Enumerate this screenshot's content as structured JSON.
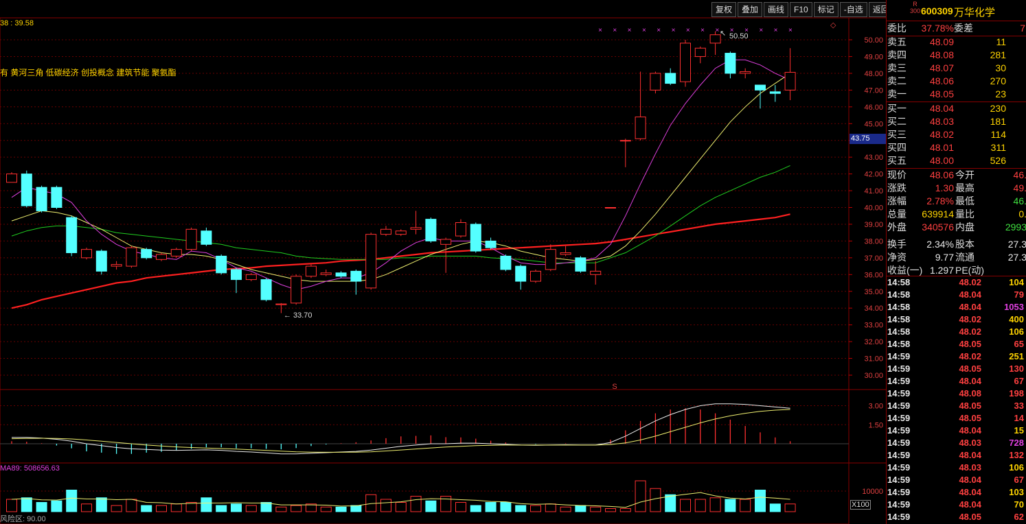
{
  "toolbar": {
    "buttons": [
      "复权",
      "叠加",
      "画线",
      "F10",
      "标记",
      "-自选",
      "返回"
    ]
  },
  "chart_header": {
    "ma_text": "38 : 39.58",
    "concepts": "有 黄河三角 低碳经济 创投概念 建筑节能 聚氨酯"
  },
  "price_axis": {
    "labels": [
      "50.00",
      "49.00",
      "48.00",
      "47.00",
      "46.00",
      "45.00",
      "44.00",
      "43.00",
      "42.00",
      "41.00",
      "40.00",
      "39.00",
      "38.00",
      "37.00",
      "36.00",
      "35.00",
      "34.00",
      "33.00",
      "32.00",
      "31.00",
      "30.00"
    ],
    "current": "43.75"
  },
  "annotations": {
    "high_label": "50.50",
    "low_label": "33.70",
    "marker": "S"
  },
  "macd_axis": {
    "labels": [
      "3.00",
      "1.50"
    ]
  },
  "volume": {
    "label": "MA89: 508656.63",
    "axis_label": "10000",
    "scale": "X100"
  },
  "risk": "风险区: 90.00",
  "stock": {
    "r_mark": "R\n300",
    "code": "600309",
    "name": "万华化学"
  },
  "orderbook": {
    "weibi": {
      "label": "委比",
      "value": "37.78%",
      "label2": "委差",
      "value2": "7"
    },
    "asks": [
      {
        "label": "卖五",
        "price": "48.09",
        "vol": "11"
      },
      {
        "label": "卖四",
        "price": "48.08",
        "vol": "281"
      },
      {
        "label": "卖三",
        "price": "48.07",
        "vol": "30"
      },
      {
        "label": "卖二",
        "price": "48.06",
        "vol": "270"
      },
      {
        "label": "卖一",
        "price": "48.05",
        "vol": "23"
      }
    ],
    "bids": [
      {
        "label": "买一",
        "price": "48.04",
        "vol": "230"
      },
      {
        "label": "买二",
        "price": "48.03",
        "vol": "181"
      },
      {
        "label": "买三",
        "price": "48.02",
        "vol": "114"
      },
      {
        "label": "买四",
        "price": "48.01",
        "vol": "311"
      },
      {
        "label": "买五",
        "price": "48.00",
        "vol": "526"
      }
    ]
  },
  "quote": [
    {
      "l1": "现价",
      "v1": "48.06",
      "l2": "今开",
      "v2": "46.",
      "c1": "red",
      "c2": "red"
    },
    {
      "l1": "涨跌",
      "v1": "1.30",
      "l2": "最高",
      "v2": "49.",
      "c1": "red",
      "c2": "red"
    },
    {
      "l1": "涨幅",
      "v1": "2.78%",
      "l2": "最低",
      "v2": "46.",
      "c1": "red",
      "c2": "grn"
    },
    {
      "l1": "总量",
      "v1": "639914",
      "l2": "量比",
      "v2": "0.",
      "c1": "yel",
      "c2": "yel"
    },
    {
      "l1": "外盘",
      "v1": "340576",
      "l2": "内盘",
      "v2": "2993",
      "c1": "red",
      "c2": "grn"
    },
    {
      "l1": "换手",
      "v1": "2.34%",
      "l2": "股本",
      "v2": "27.3",
      "c1": "wht",
      "c2": "wht"
    },
    {
      "l1": "净资",
      "v1": "9.77",
      "l2": "流通",
      "v2": "27.3",
      "c1": "wht",
      "c2": "wht"
    },
    {
      "l1": "收益(一)",
      "v1": "1.297",
      "l2": "PE(动)",
      "v2": "",
      "c1": "wht",
      "c2": "wht"
    }
  ],
  "ticks": [
    {
      "t": "14:58",
      "p": "48.02",
      "v": "104",
      "c": "yel"
    },
    {
      "t": "14:58",
      "p": "48.04",
      "v": "79",
      "c": "red"
    },
    {
      "t": "14:58",
      "p": "48.04",
      "v": "1053",
      "c": "mag"
    },
    {
      "t": "14:58",
      "p": "48.02",
      "v": "400",
      "c": "yel"
    },
    {
      "t": "14:58",
      "p": "48.02",
      "v": "106",
      "c": "yel"
    },
    {
      "t": "14:58",
      "p": "48.05",
      "v": "65",
      "c": "red"
    },
    {
      "t": "14:59",
      "p": "48.02",
      "v": "251",
      "c": "yel"
    },
    {
      "t": "14:59",
      "p": "48.05",
      "v": "130",
      "c": "red"
    },
    {
      "t": "14:59",
      "p": "48.04",
      "v": "67",
      "c": "red"
    },
    {
      "t": "14:59",
      "p": "48.08",
      "v": "198",
      "c": "red"
    },
    {
      "t": "14:59",
      "p": "48.05",
      "v": "33",
      "c": "red"
    },
    {
      "t": "14:59",
      "p": "48.05",
      "v": "14",
      "c": "red"
    },
    {
      "t": "14:59",
      "p": "48.04",
      "v": "15",
      "c": "yel"
    },
    {
      "t": "14:59",
      "p": "48.03",
      "v": "728",
      "c": "mag"
    },
    {
      "t": "14:59",
      "p": "48.04",
      "v": "132",
      "c": "red"
    },
    {
      "t": "14:59",
      "p": "48.03",
      "v": "106",
      "c": "yel"
    },
    {
      "t": "14:59",
      "p": "48.04",
      "v": "67",
      "c": "red"
    },
    {
      "t": "14:59",
      "p": "48.04",
      "v": "103",
      "c": "yel"
    },
    {
      "t": "14:59",
      "p": "48.04",
      "v": "70",
      "c": "yel"
    },
    {
      "t": "14:59",
      "p": "48.05",
      "v": "62",
      "c": "red"
    }
  ],
  "chart_data": {
    "type": "candlestick",
    "ylim": [
      29.5,
      51
    ],
    "candles": [
      [
        41.5,
        42.0,
        41.6,
        42.1
      ],
      [
        42.0,
        40.1,
        40.0,
        42.2
      ],
      [
        41.2,
        39.8,
        39.7,
        41.3
      ],
      [
        41.2,
        40.0,
        39.9,
        41.3
      ],
      [
        39.4,
        37.3,
        37.1,
        39.5
      ],
      [
        37.0,
        37.5,
        36.9,
        37.6
      ],
      [
        37.4,
        36.2,
        36.0,
        37.5
      ],
      [
        36.5,
        36.6,
        36.3,
        36.8
      ],
      [
        36.5,
        37.6,
        36.4,
        37.7
      ],
      [
        37.5,
        37.0,
        36.9,
        37.6
      ],
      [
        36.9,
        37.2,
        36.8,
        37.3
      ],
      [
        37.1,
        37.5,
        37.0,
        37.6
      ],
      [
        37.5,
        38.7,
        37.4,
        38.8
      ],
      [
        38.6,
        37.8,
        37.7,
        38.8
      ],
      [
        37.1,
        36.1,
        36.0,
        37.2
      ],
      [
        36.3,
        35.7,
        34.9,
        36.4
      ],
      [
        35.7,
        36.0,
        35.6,
        36.1
      ],
      [
        35.7,
        34.5,
        34.4,
        35.8
      ],
      [
        34.2,
        34.25,
        33.7,
        34.3
      ],
      [
        34.3,
        35.9,
        34.2,
        36.0
      ],
      [
        35.9,
        36.5,
        35.8,
        36.6
      ],
      [
        36.0,
        36.1,
        35.9,
        36.3
      ],
      [
        36.1,
        35.9,
        35.8,
        36.2
      ],
      [
        36.2,
        35.6,
        34.8,
        36.3
      ],
      [
        35.2,
        38.4,
        35.1,
        38.5
      ],
      [
        38.4,
        38.7,
        38.3,
        38.9
      ],
      [
        38.4,
        38.6,
        38.3,
        38.7
      ],
      [
        38.7,
        38.8,
        38.4,
        39.8
      ],
      [
        39.3,
        38.0,
        37.9,
        39.4
      ],
      [
        37.8,
        38.1,
        36.1,
        38.2
      ],
      [
        38.3,
        39.1,
        38.2,
        39.3
      ],
      [
        39.0,
        37.4,
        37.3,
        39.1
      ],
      [
        38.0,
        37.6,
        37.5,
        38.2
      ],
      [
        37.1,
        36.3,
        36.2,
        37.2
      ],
      [
        36.5,
        35.6,
        35.1,
        36.6
      ],
      [
        35.6,
        36.2,
        35.5,
        36.3
      ],
      [
        36.3,
        37.5,
        36.2,
        37.8
      ],
      [
        37.2,
        37.3,
        37.1,
        37.7
      ],
      [
        37.0,
        36.2,
        36.1,
        37.1
      ],
      [
        36.0,
        36.2,
        35.4,
        36.8
      ],
      [
        40.0,
        40.0,
        40.0,
        40.0
      ],
      [
        44.0,
        44.0,
        42.4,
        44.1
      ],
      [
        44.1,
        45.4,
        44.0,
        48.1
      ],
      [
        47.0,
        48.0,
        46.8,
        48.1
      ],
      [
        48.0,
        47.4,
        47.3,
        48.3
      ],
      [
        47.5,
        49.8,
        47.2,
        50.0
      ],
      [
        49.0,
        49.5,
        48.6,
        49.6
      ],
      [
        49.8,
        50.3,
        49.1,
        50.5
      ],
      [
        49.2,
        48.0,
        47.7,
        49.3
      ],
      [
        48.0,
        48.1,
        47.7,
        48.3
      ],
      [
        47.3,
        47.0,
        45.9,
        47.3
      ],
      [
        46.9,
        46.8,
        46.3,
        47.3
      ],
      [
        47.0,
        48.06,
        46.4,
        49.5
      ]
    ],
    "ma_fast": [
      40.6,
      41.2,
      41.0,
      40.8,
      40.3,
      39.2,
      38.4,
      37.8,
      37.4,
      37.2,
      37.0,
      36.9,
      37.4,
      37.3,
      36.9,
      36.4,
      36.2,
      35.8,
      35.4,
      35.1,
      35.3,
      35.6,
      35.8,
      35.8,
      36.1,
      36.7,
      37.4,
      37.9,
      38.2,
      38.0,
      38.0,
      38.0,
      37.6,
      37.1,
      36.7,
      36.6,
      36.6,
      36.7,
      36.8,
      37.0,
      37.8,
      39.5,
      41.4,
      43.2,
      44.9,
      46.2,
      47.3,
      48.3,
      48.8,
      48.8,
      48.5,
      48.0,
      47.6
    ],
    "ma_slow": [
      39.2,
      39.5,
      39.8,
      39.7,
      39.5,
      39.1,
      38.7,
      38.2,
      37.7,
      37.5,
      37.3,
      37.2,
      37.2,
      37.1,
      36.9,
      36.6,
      36.3,
      36.1,
      35.9,
      35.7,
      35.6,
      35.6,
      35.6,
      35.6,
      35.7,
      36.0,
      36.4,
      36.8,
      37.2,
      37.5,
      37.8,
      38.0,
      37.9,
      37.7,
      37.4,
      37.2,
      37.0,
      36.9,
      36.8,
      36.9,
      37.1,
      37.7,
      38.6,
      39.6,
      40.7,
      41.8,
      42.9,
      44.0,
      45.1,
      46.0,
      46.8,
      47.4,
      48.0
    ],
    "ma_mid": [
      38.3,
      38.6,
      38.8,
      38.9,
      38.9,
      38.8,
      38.7,
      38.5,
      38.4,
      38.3,
      38.2,
      38.1,
      38.0,
      37.9,
      37.8,
      37.6,
      37.5,
      37.4,
      37.3,
      37.1,
      37.0,
      36.95,
      36.9,
      36.9,
      36.9,
      36.9,
      37.0,
      37.0,
      37.1,
      37.1,
      37.1,
      37.1,
      37.0,
      36.95,
      36.9,
      36.8,
      36.7,
      36.7,
      36.7,
      36.7,
      37.0,
      37.3,
      37.8,
      38.3,
      38.9,
      39.5,
      40.1,
      40.6,
      41.0,
      41.4,
      41.8,
      42.1,
      42.5
    ],
    "ma_long": [
      34.0,
      34.2,
      34.5,
      34.7,
      34.9,
      35.1,
      35.3,
      35.5,
      35.6,
      35.8,
      35.9,
      36.0,
      36.1,
      36.2,
      36.3,
      36.35,
      36.4,
      36.5,
      36.55,
      36.6,
      36.65,
      36.7,
      36.8,
      36.85,
      36.9,
      37.0,
      37.1,
      37.2,
      37.3,
      37.35,
      37.4,
      37.45,
      37.5,
      37.55,
      37.6,
      37.65,
      37.7,
      37.75,
      37.8,
      37.85,
      37.95,
      38.1,
      38.25,
      38.4,
      38.55,
      38.7,
      38.85,
      39.0,
      39.1,
      39.2,
      39.3,
      39.4,
      39.6
    ],
    "macd_dif": [
      0.5,
      0.5,
      0.45,
      0.35,
      0.2,
      0.0,
      -0.15,
      -0.3,
      -0.4,
      -0.45,
      -0.5,
      -0.52,
      -0.5,
      -0.48,
      -0.52,
      -0.6,
      -0.65,
      -0.72,
      -0.8,
      -0.8,
      -0.75,
      -0.7,
      -0.65,
      -0.6,
      -0.5,
      -0.35,
      -0.2,
      -0.1,
      0.0,
      0.0,
      0.05,
      0.05,
      0.0,
      -0.05,
      -0.1,
      -0.12,
      -0.1,
      -0.08,
      -0.1,
      -0.1,
      0.1,
      0.6,
      1.2,
      1.8,
      2.3,
      2.7,
      3.0,
      3.15,
      3.15,
      3.1,
      3.0,
      2.9,
      2.8
    ],
    "macd_dea": [
      0.4,
      0.42,
      0.43,
      0.42,
      0.38,
      0.3,
      0.2,
      0.1,
      0.0,
      -0.1,
      -0.18,
      -0.25,
      -0.3,
      -0.34,
      -0.38,
      -0.42,
      -0.47,
      -0.52,
      -0.58,
      -0.63,
      -0.66,
      -0.67,
      -0.67,
      -0.66,
      -0.63,
      -0.57,
      -0.49,
      -0.41,
      -0.33,
      -0.26,
      -0.2,
      -0.15,
      -0.12,
      -0.1,
      -0.1,
      -0.1,
      -0.1,
      -0.1,
      -0.1,
      -0.1,
      -0.06,
      0.07,
      0.3,
      0.6,
      0.95,
      1.3,
      1.65,
      1.95,
      2.2,
      2.4,
      2.55,
      2.65,
      2.7
    ],
    "volume": [
      8,
      9,
      6,
      7,
      14,
      5,
      9,
      4,
      8,
      4,
      4,
      5,
      6,
      9,
      4,
      5,
      4,
      6,
      3,
      4,
      5,
      3,
      3,
      4,
      11,
      8,
      6,
      10,
      7,
      10,
      6,
      4,
      6,
      6,
      4,
      4,
      5,
      3,
      4,
      3,
      2,
      2,
      20,
      15,
      11,
      8,
      8,
      9,
      8,
      8,
      14,
      5,
      5
    ]
  }
}
